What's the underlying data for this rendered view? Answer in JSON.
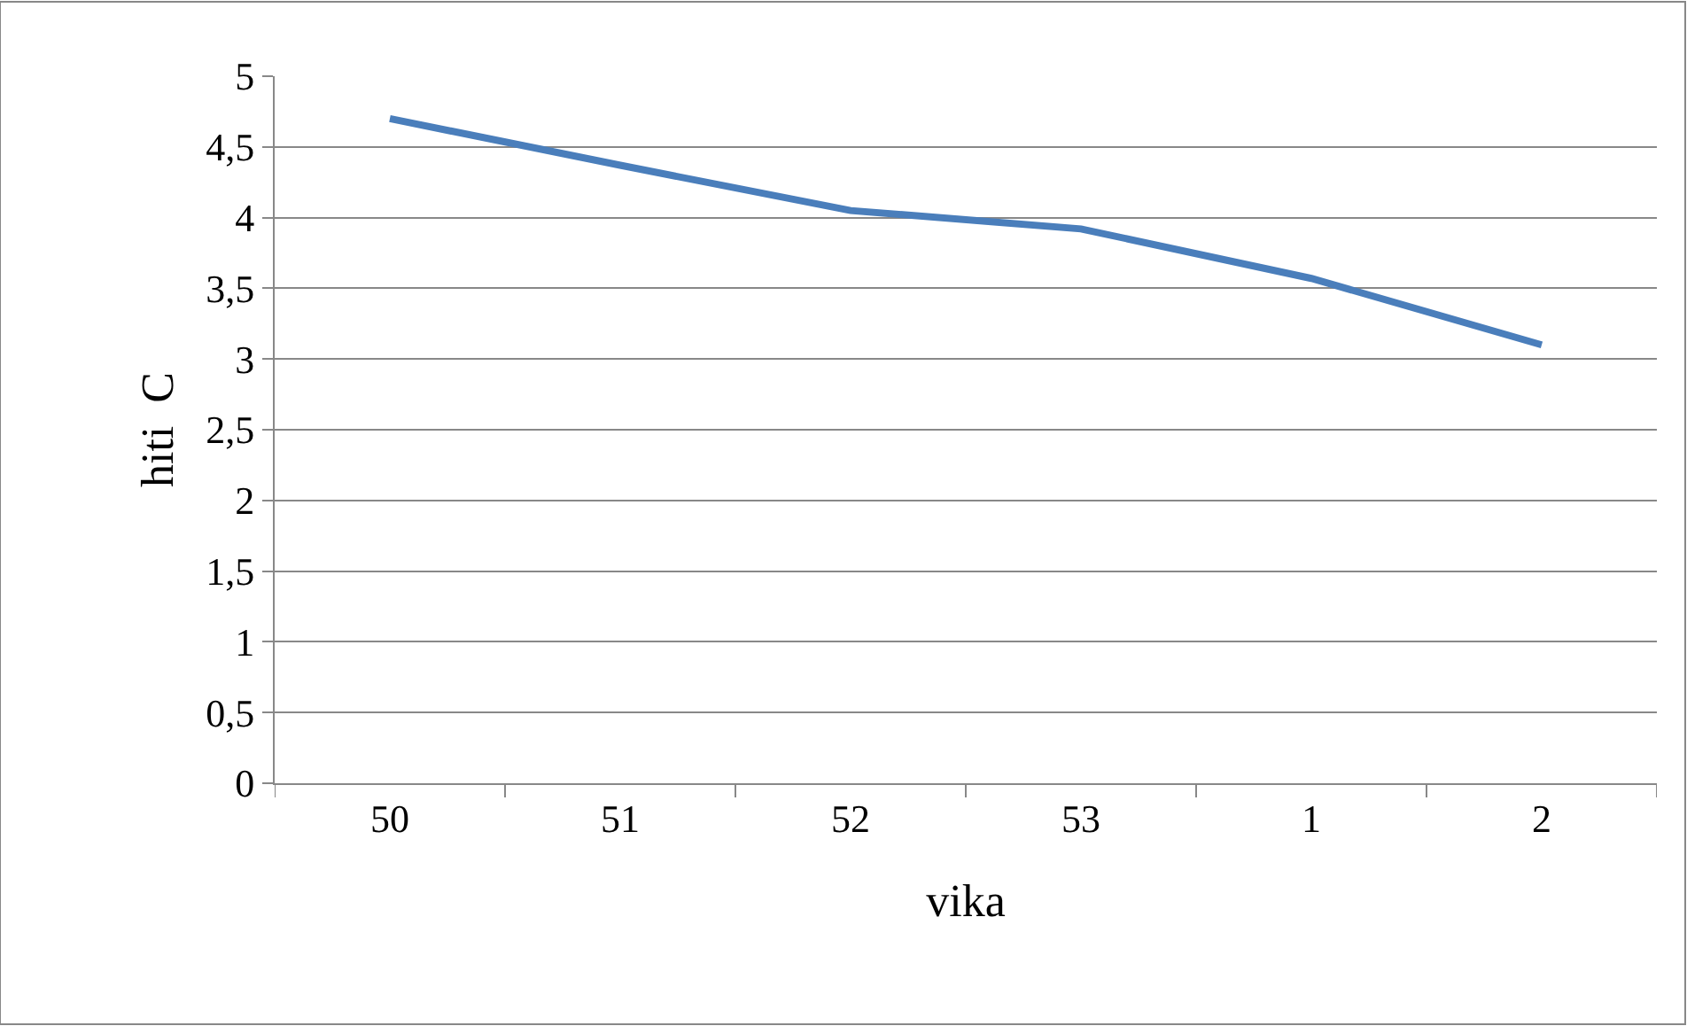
{
  "chart_data": {
    "type": "line",
    "xlabel": "vika",
    "ylabel": "hiti  C",
    "categories": [
      "50",
      "51",
      "52",
      "53",
      "1",
      "2"
    ],
    "series": [
      {
        "color": "#4a7ebb",
        "values": [
          4.7,
          4.37,
          4.05,
          3.92,
          3.57,
          3.1
        ]
      }
    ],
    "ylim": [
      0,
      5
    ],
    "yticks": [
      {
        "value": 0,
        "label": "0"
      },
      {
        "value": 0.5,
        "label": "0,5"
      },
      {
        "value": 1,
        "label": "1"
      },
      {
        "value": 1.5,
        "label": "1,5"
      },
      {
        "value": 2,
        "label": "2"
      },
      {
        "value": 2.5,
        "label": "2,5"
      },
      {
        "value": 3,
        "label": "3"
      },
      {
        "value": 3.5,
        "label": "3,5"
      },
      {
        "value": 4,
        "label": "4"
      },
      {
        "value": 4.5,
        "label": "4,5"
      },
      {
        "value": 5,
        "label": "5"
      }
    ],
    "grid": "y",
    "marker": "none",
    "line_style": "solid"
  }
}
